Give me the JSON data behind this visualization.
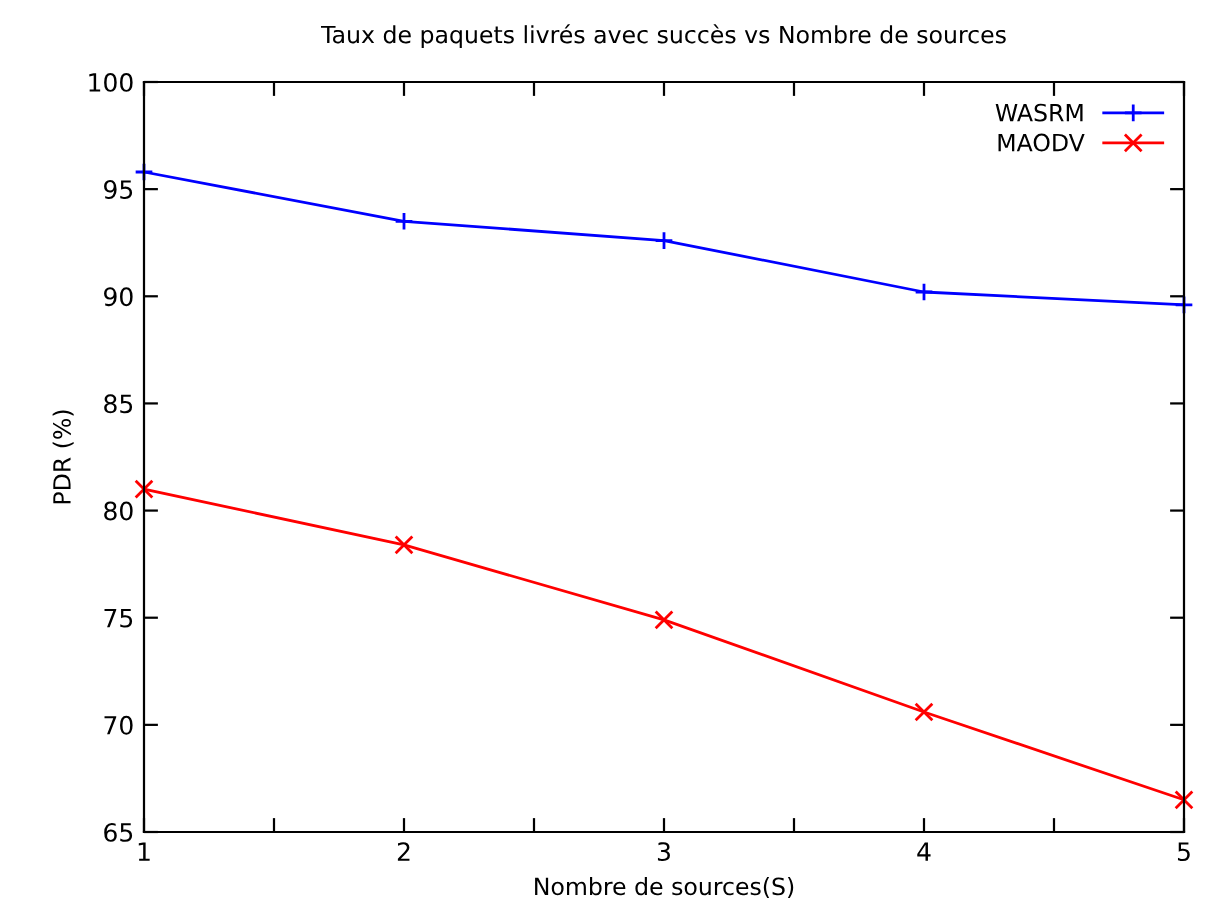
{
  "chart_data": {
    "type": "line",
    "title": "Taux de paquets livrés avec succès vs Nombre de sources",
    "xlabel": "Nombre de sources(S)",
    "ylabel": "PDR (%)",
    "x": [
      1,
      2,
      3,
      4,
      5
    ],
    "series": [
      {
        "name": "WASRM",
        "color": "#0000ff",
        "marker": "plus",
        "values": [
          95.8,
          93.5,
          92.6,
          90.2,
          89.6
        ]
      },
      {
        "name": "MAODV",
        "color": "#ff0000",
        "marker": "cross",
        "values": [
          81.0,
          78.4,
          74.9,
          70.6,
          66.5
        ]
      }
    ],
    "xlim": [
      1,
      5
    ],
    "xticks": [
      1,
      {
        "value": 1.5,
        "label": null
      },
      2,
      {
        "value": 2.5,
        "label": null
      },
      3,
      {
        "value": 3.5,
        "label": null
      },
      4,
      {
        "value": 4.5,
        "label": null
      },
      5
    ],
    "ylim": [
      65,
      100
    ],
    "yticks": [
      65,
      70,
      75,
      80,
      85,
      90,
      95,
      100
    ],
    "grid": false,
    "legend": "top right",
    "line_style": "solid"
  }
}
